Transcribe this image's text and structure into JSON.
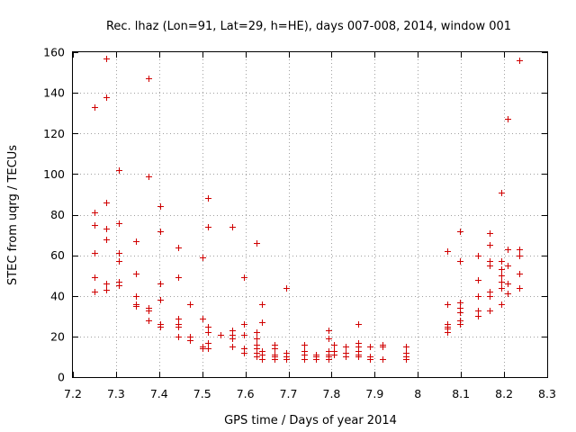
{
  "chart_data": {
    "type": "scatter",
    "title": "Rec. lhaz (Lon=91, Lat=29, h=HE), days 007-008, 2014, window 001",
    "xlabel": "GPS time / Days of year 2014",
    "ylabel": "STEC from uqrg / TECUs",
    "xlim": [
      7.2,
      8.3
    ],
    "ylim": [
      0,
      160
    ],
    "xticks": [
      "7.2",
      "7.3",
      "7.4",
      "7.5",
      "7.6",
      "7.7",
      "7.8",
      "7.9",
      "8",
      "8.1",
      "8.2",
      "8.3"
    ],
    "yticks": [
      "0",
      "20",
      "40",
      "60",
      "80",
      "100",
      "120",
      "140",
      "160"
    ],
    "grid": true,
    "marker": "+",
    "color": "#d00000",
    "series": [
      {
        "name": "STEC",
        "points": [
          [
            7.25,
            133
          ],
          [
            7.25,
            81
          ],
          [
            7.25,
            75
          ],
          [
            7.25,
            61
          ],
          [
            7.25,
            49
          ],
          [
            7.25,
            42
          ],
          [
            7.278,
            157
          ],
          [
            7.278,
            138
          ],
          [
            7.278,
            86
          ],
          [
            7.278,
            73
          ],
          [
            7.278,
            68
          ],
          [
            7.278,
            46
          ],
          [
            7.278,
            43
          ],
          [
            7.306,
            102
          ],
          [
            7.306,
            76
          ],
          [
            7.306,
            61
          ],
          [
            7.306,
            57
          ],
          [
            7.306,
            47
          ],
          [
            7.306,
            45
          ],
          [
            7.347,
            67
          ],
          [
            7.347,
            51
          ],
          [
            7.347,
            40
          ],
          [
            7.347,
            36
          ],
          [
            7.347,
            35
          ],
          [
            7.375,
            147
          ],
          [
            7.375,
            99
          ],
          [
            7.375,
            34
          ],
          [
            7.375,
            33
          ],
          [
            7.375,
            28
          ],
          [
            7.403,
            84
          ],
          [
            7.403,
            72
          ],
          [
            7.403,
            46
          ],
          [
            7.403,
            38
          ],
          [
            7.403,
            26
          ],
          [
            7.403,
            25
          ],
          [
            7.444,
            64
          ],
          [
            7.444,
            49
          ],
          [
            7.444,
            29
          ],
          [
            7.444,
            26
          ],
          [
            7.444,
            25
          ],
          [
            7.444,
            20
          ],
          [
            7.472,
            36
          ],
          [
            7.472,
            20
          ],
          [
            7.472,
            18
          ],
          [
            7.5,
            59
          ],
          [
            7.5,
            29
          ],
          [
            7.5,
            15
          ],
          [
            7.5,
            14
          ],
          [
            7.514,
            88
          ],
          [
            7.514,
            74
          ],
          [
            7.514,
            25
          ],
          [
            7.514,
            22
          ],
          [
            7.514,
            17
          ],
          [
            7.514,
            14
          ],
          [
            7.542,
            21
          ],
          [
            7.569,
            74
          ],
          [
            7.569,
            23
          ],
          [
            7.569,
            21
          ],
          [
            7.569,
            19
          ],
          [
            7.569,
            15
          ],
          [
            7.597,
            49
          ],
          [
            7.597,
            26
          ],
          [
            7.597,
            21
          ],
          [
            7.597,
            14
          ],
          [
            7.597,
            12
          ],
          [
            7.625,
            66
          ],
          [
            7.625,
            22
          ],
          [
            7.625,
            19
          ],
          [
            7.625,
            16
          ],
          [
            7.625,
            14
          ],
          [
            7.625,
            12
          ],
          [
            7.625,
            10
          ],
          [
            7.639,
            36
          ],
          [
            7.639,
            27
          ],
          [
            7.639,
            13
          ],
          [
            7.639,
            11
          ],
          [
            7.639,
            9
          ],
          [
            7.667,
            16
          ],
          [
            7.667,
            14
          ],
          [
            7.667,
            11
          ],
          [
            7.667,
            10
          ],
          [
            7.667,
            9
          ],
          [
            7.694,
            44
          ],
          [
            7.694,
            12
          ],
          [
            7.694,
            10
          ],
          [
            7.694,
            9
          ],
          [
            7.736,
            16
          ],
          [
            7.736,
            13
          ],
          [
            7.736,
            11
          ],
          [
            7.736,
            9
          ],
          [
            7.764,
            11
          ],
          [
            7.764,
            10
          ],
          [
            7.764,
            9
          ],
          [
            7.792,
            23
          ],
          [
            7.792,
            19
          ],
          [
            7.792,
            13
          ],
          [
            7.792,
            11
          ],
          [
            7.792,
            10
          ],
          [
            7.792,
            9
          ],
          [
            7.806,
            16
          ],
          [
            7.806,
            13
          ],
          [
            7.806,
            11
          ],
          [
            7.833,
            15
          ],
          [
            7.833,
            12
          ],
          [
            7.833,
            10
          ],
          [
            7.861,
            26
          ],
          [
            7.861,
            17
          ],
          [
            7.861,
            15
          ],
          [
            7.861,
            13
          ],
          [
            7.861,
            11
          ],
          [
            7.861,
            10
          ],
          [
            7.889,
            10
          ],
          [
            7.889,
            9
          ],
          [
            7.889,
            15
          ],
          [
            7.917,
            16
          ],
          [
            7.917,
            15
          ],
          [
            7.917,
            9
          ],
          [
            7.972,
            15
          ],
          [
            7.972,
            12
          ],
          [
            7.972,
            10
          ],
          [
            7.972,
            9
          ],
          [
            8.069,
            62
          ],
          [
            8.069,
            36
          ],
          [
            8.069,
            26
          ],
          [
            8.069,
            25
          ],
          [
            8.069,
            24
          ],
          [
            8.069,
            22
          ],
          [
            8.097,
            72
          ],
          [
            8.097,
            57
          ],
          [
            8.097,
            37
          ],
          [
            8.097,
            34
          ],
          [
            8.097,
            32
          ],
          [
            8.097,
            28
          ],
          [
            8.097,
            26
          ],
          [
            8.139,
            60
          ],
          [
            8.139,
            48
          ],
          [
            8.139,
            40
          ],
          [
            8.139,
            33
          ],
          [
            8.139,
            30
          ],
          [
            8.167,
            71
          ],
          [
            8.167,
            65
          ],
          [
            8.167,
            57
          ],
          [
            8.167,
            55
          ],
          [
            8.167,
            42
          ],
          [
            8.167,
            40
          ],
          [
            8.167,
            33
          ],
          [
            8.194,
            91
          ],
          [
            8.194,
            57
          ],
          [
            8.194,
            53
          ],
          [
            8.194,
            50
          ],
          [
            8.194,
            47
          ],
          [
            8.194,
            44
          ],
          [
            8.194,
            36
          ],
          [
            8.208,
            127
          ],
          [
            8.208,
            63
          ],
          [
            8.208,
            55
          ],
          [
            8.208,
            46
          ],
          [
            8.208,
            41
          ],
          [
            8.236,
            156
          ],
          [
            8.236,
            63
          ],
          [
            8.236,
            60
          ],
          [
            8.236,
            51
          ],
          [
            8.236,
            44
          ]
        ]
      }
    ]
  }
}
